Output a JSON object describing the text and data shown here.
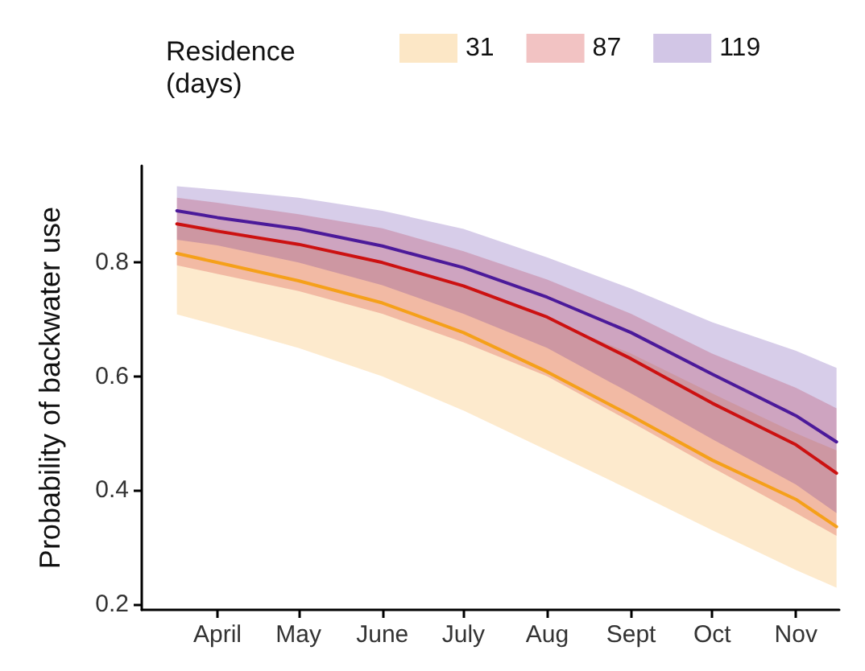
{
  "chart_data": {
    "type": "line",
    "ylabel": "Probability of backwater use",
    "legend_title": "Residence\n(days)",
    "legend": "top",
    "grid": false,
    "marker": "none",
    "line_style": "solid",
    "x": [
      "--03-17",
      "--04-01",
      "--05-01",
      "--06-01",
      "--07-01",
      "--08-01",
      "--09-01",
      "--10-01",
      "--11-01",
      "--11-16"
    ],
    "xlim": [
      "--03-04",
      "--11-17"
    ],
    "xticks": [
      {
        "value": "--04-01",
        "label": "April"
      },
      {
        "value": "--05-01",
        "label": "May"
      },
      {
        "value": "--06-01",
        "label": "June"
      },
      {
        "value": "--07-01",
        "label": "July"
      },
      {
        "value": "--08-01",
        "label": "Aug"
      },
      {
        "value": "--09-01",
        "label": "Sept"
      },
      {
        "value": "--10-01",
        "label": "Oct"
      },
      {
        "value": "--11-01",
        "label": "Nov"
      }
    ],
    "ylim": [
      0.19,
      0.97
    ],
    "yticks": [
      0.2,
      0.4,
      0.6,
      0.8
    ],
    "series": [
      {
        "name": "31",
        "color": "#f5a01a",
        "values": [
          0.816,
          0.8,
          0.768,
          0.729,
          0.677,
          0.608,
          0.531,
          0.453,
          0.384,
          0.336
        ],
        "lower": [
          0.709,
          0.69,
          0.65,
          0.6,
          0.54,
          0.47,
          0.4,
          0.33,
          0.26,
          0.229
        ],
        "upper": [
          0.87,
          0.86,
          0.83,
          0.8,
          0.76,
          0.7,
          0.64,
          0.57,
          0.5,
          0.47
        ]
      },
      {
        "name": "87",
        "color": "#cc1111",
        "values": [
          0.868,
          0.855,
          0.832,
          0.8,
          0.759,
          0.704,
          0.631,
          0.553,
          0.48,
          0.43
        ],
        "lower": [
          0.795,
          0.78,
          0.75,
          0.71,
          0.66,
          0.6,
          0.52,
          0.44,
          0.36,
          0.32
        ],
        "upper": [
          0.914,
          0.905,
          0.885,
          0.86,
          0.82,
          0.77,
          0.71,
          0.64,
          0.58,
          0.544
        ]
      },
      {
        "name": "119",
        "color": "#4b1a9a",
        "values": [
          0.891,
          0.879,
          0.859,
          0.829,
          0.791,
          0.739,
          0.677,
          0.604,
          0.531,
          0.485
        ],
        "lower": [
          0.84,
          0.83,
          0.8,
          0.76,
          0.71,
          0.65,
          0.57,
          0.49,
          0.41,
          0.36
        ],
        "upper": [
          0.934,
          0.928,
          0.914,
          0.891,
          0.859,
          0.809,
          0.754,
          0.695,
          0.645,
          0.615
        ]
      }
    ]
  }
}
